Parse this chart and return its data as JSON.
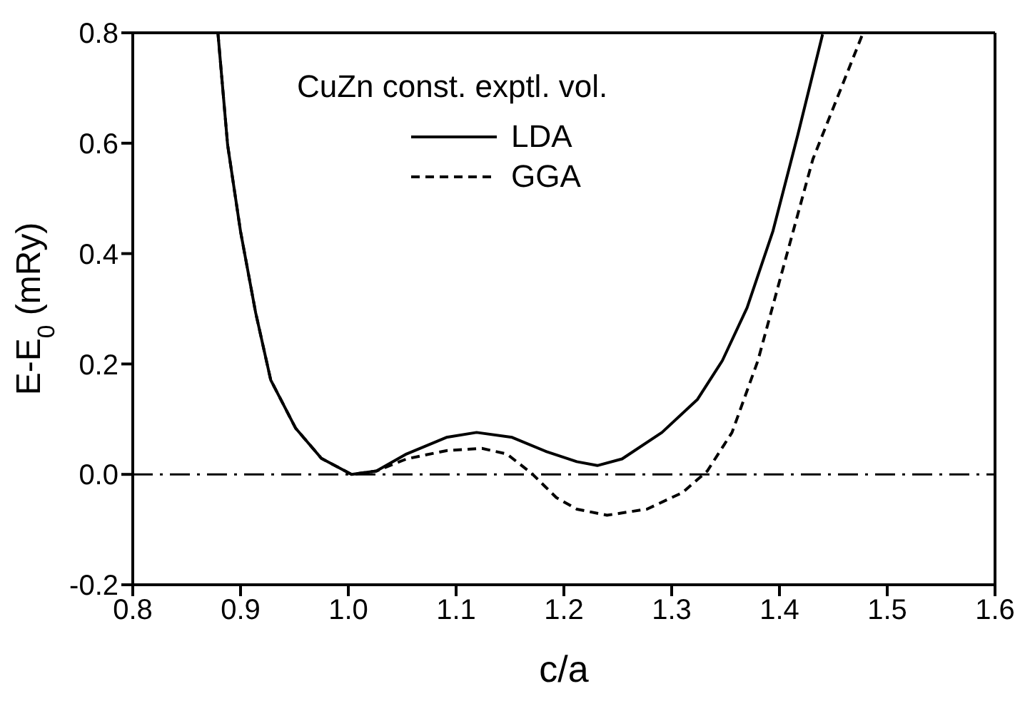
{
  "chart_data": {
    "type": "line",
    "legend_title": "CuZn const. exptl. vol.",
    "xlabel": "c/a",
    "ylabel": "E-E$_{0}$ (mRy)",
    "xlim": [
      0.8,
      1.6
    ],
    "xticks": [
      0.8,
      0.9,
      {
        "value": 1,
        "label": "1.0"
      },
      1.1,
      1.2,
      1.3,
      1.4,
      1.5,
      {
        "value": 1.6,
        "label": "1.6"
      }
    ],
    "ylim": [
      -0.2,
      0.8
    ],
    "yticks": [
      -0.2,
      {
        "value": 0,
        "label": "0.0"
      },
      0.2,
      0.4,
      0.6,
      0.8
    ],
    "legend": "top",
    "marker": "none",
    "ref_lines": [
      {
        "axis": "y",
        "value": 0,
        "color": "#000000",
        "line_style": "dashdot"
      }
    ],
    "series": [
      {
        "name": "LDA",
        "color": "#000000",
        "line_style": "solid",
        "x": [
          0.879,
          0.888,
          0.9,
          0.914,
          0.928,
          0.951,
          0.975,
          1.003,
          1.026,
          1.054,
          1.091,
          1.119,
          1.152,
          1.184,
          1.212,
          1.231,
          1.254,
          1.291,
          1.324,
          1.347,
          1.37,
          1.394,
          1.417,
          1.44
        ],
        "values": [
          0.8,
          0.597,
          0.44,
          0.293,
          0.171,
          0.084,
          0.029,
          0,
          0.006,
          0.037,
          0.067,
          0.076,
          0.067,
          0.041,
          0.023,
          0.016,
          0.028,
          0.076,
          0.136,
          0.206,
          0.302,
          0.441,
          0.615,
          0.797
        ]
      },
      {
        "name": "GGA",
        "color": "#000000",
        "line_style": "dashed",
        "x": [
          0.879,
          0.888,
          0.9,
          0.914,
          0.928,
          0.951,
          0.975,
          1.003,
          1.026,
          1.054,
          1.091,
          1.124,
          1.147,
          1.17,
          1.193,
          1.212,
          1.24,
          1.277,
          1.31,
          1.333,
          1.356,
          1.38,
          1.403,
          1.431,
          1.477
        ],
        "values": [
          0.8,
          0.597,
          0.44,
          0.293,
          0.171,
          0.084,
          0.029,
          0,
          0.006,
          0.028,
          0.043,
          0.047,
          0.037,
          0.002,
          -0.042,
          -0.063,
          -0.074,
          -0.063,
          -0.033,
          0.006,
          0.076,
          0.206,
          0.371,
          0.571,
          0.797
        ]
      }
    ]
  }
}
